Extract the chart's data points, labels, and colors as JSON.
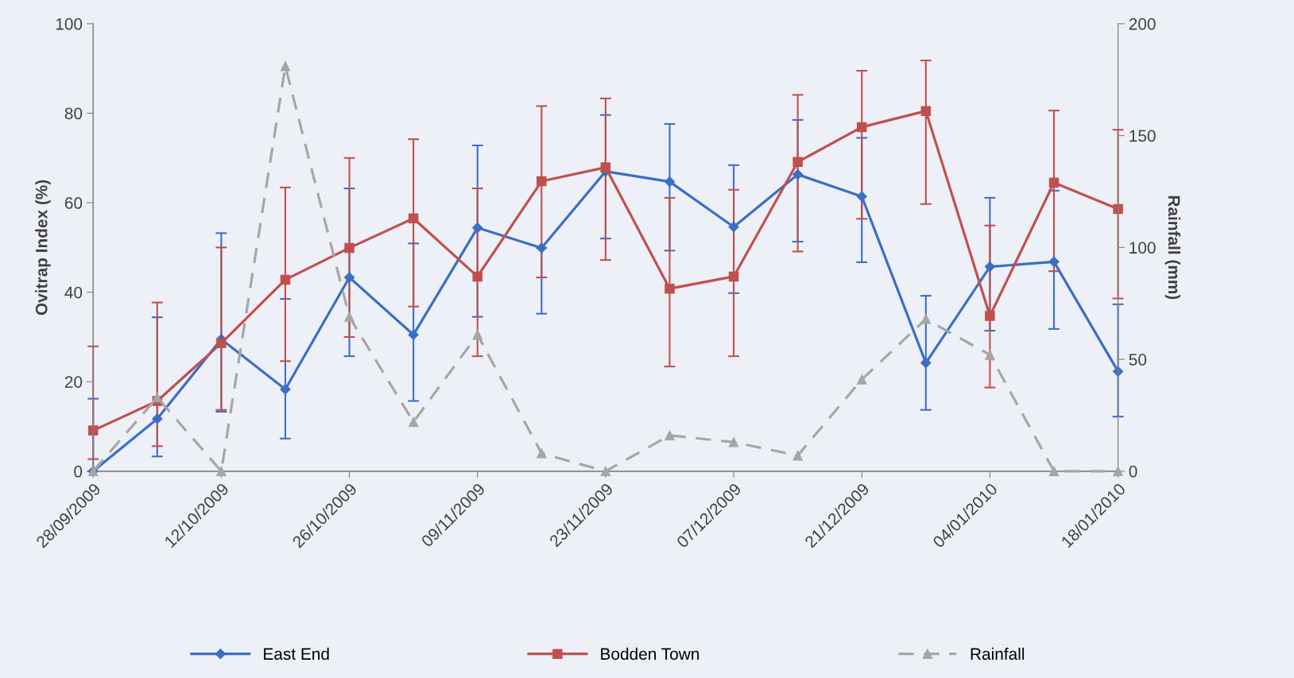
{
  "chart_data": {
    "type": "line",
    "ylabel": "Ovitrap Index (%)",
    "y2label": "Rainfall (mm)",
    "x": [
      "2009-09-28",
      "2009-10-05",
      "2009-10-12",
      "2009-10-19",
      "2009-10-26",
      "2009-11-02",
      "2009-11-09",
      "2009-11-16",
      "2009-11-23",
      "2009-11-30",
      "2009-12-07",
      "2009-12-14",
      "2009-12-21",
      "2009-12-28",
      "2010-01-04",
      "2010-01-11",
      "2010-01-18"
    ],
    "xlim": [
      "2009-09-28",
      "2010-01-18"
    ],
    "xticks": [
      {
        "value": "2009-09-28",
        "label": "28/09/2009"
      },
      {
        "value": "2009-10-12",
        "label": "12/10/2009"
      },
      {
        "value": "2009-10-26",
        "label": "26/10/2009"
      },
      {
        "value": "2009-11-09",
        "label": "09/11/2009"
      },
      {
        "value": "2009-11-23",
        "label": "23/11/2009"
      },
      {
        "value": "2009-12-07",
        "label": "07/12/2009"
      },
      {
        "value": "2009-12-21",
        "label": "21/12/2009"
      },
      {
        "value": "2010-01-04",
        "label": "04/01/2010"
      },
      {
        "value": "2010-01-18",
        "label": "18/01/2010"
      }
    ],
    "ylim": [
      0,
      100
    ],
    "yticks": [
      0,
      20,
      40,
      60,
      80,
      100
    ],
    "y2lim": [
      0,
      200
    ],
    "y2ticks": [
      0,
      50,
      100,
      150,
      200
    ],
    "grid": false,
    "legend": "bottom",
    "series": [
      {
        "name": "East End",
        "color": "#3a6fc4",
        "marker": "diamond",
        "line_style": "solid",
        "values": [
          0,
          11.7,
          29.5,
          18.3,
          43.3,
          30.5,
          54.4,
          49.9,
          67,
          64.7,
          54.6,
          66.3,
          61.4,
          24.2,
          45.7,
          46.8,
          22.3
        ],
        "errors": [
          [
            0,
            16.2
          ],
          [
            3.3,
            34.4
          ],
          [
            13.3,
            53.2
          ],
          [
            7.3,
            38.5
          ],
          [
            25.7,
            63.2
          ],
          [
            15.7,
            50.9
          ],
          [
            34.5,
            72.8
          ],
          [
            35.2,
            49.9
          ],
          [
            52,
            79.6
          ],
          [
            49.3,
            77.6
          ],
          [
            39.8,
            68.4
          ],
          [
            51.3,
            78.5
          ],
          [
            46.7,
            74.5
          ],
          [
            13.7,
            39.2
          ],
          [
            31.4,
            61.1
          ],
          [
            31.8,
            62.7
          ],
          [
            12.2,
            37.3
          ]
        ]
      },
      {
        "name": "Bodden Town",
        "color": "#c0504d",
        "marker": "square",
        "line_style": "solid",
        "values": [
          9.1,
          15.7,
          28.6,
          42.8,
          49.9,
          56.5,
          43.5,
          64.8,
          67.9,
          40.8,
          43.5,
          69.1,
          76.9,
          80.5,
          34.7,
          64.5,
          58.6
        ],
        "errors": [
          [
            2.7,
            27.9
          ],
          [
            5.6,
            37.7
          ],
          [
            13.7,
            50
          ],
          [
            24.6,
            63.4
          ],
          [
            30,
            70
          ],
          [
            36.8,
            74.2
          ],
          [
            25.7,
            63.2
          ],
          [
            43.3,
            81.6
          ],
          [
            47.2,
            83.3
          ],
          [
            23.4,
            61.1
          ],
          [
            25.7,
            62.9
          ],
          [
            49.1,
            84.1
          ],
          [
            56.4,
            89.5
          ],
          [
            59.7,
            91.8
          ],
          [
            18.7,
            54.9
          ],
          [
            44.7,
            80.6
          ],
          [
            38.6,
            76.3
          ]
        ]
      },
      {
        "name": "Rainfall",
        "color": "#a6a6a6",
        "marker": "triangle",
        "line_style": "dashed",
        "axis": "y2",
        "values": [
          0,
          33,
          0,
          181,
          69,
          22,
          61,
          8,
          0,
          16,
          13,
          7,
          41,
          68,
          52,
          0,
          0
        ]
      }
    ]
  }
}
